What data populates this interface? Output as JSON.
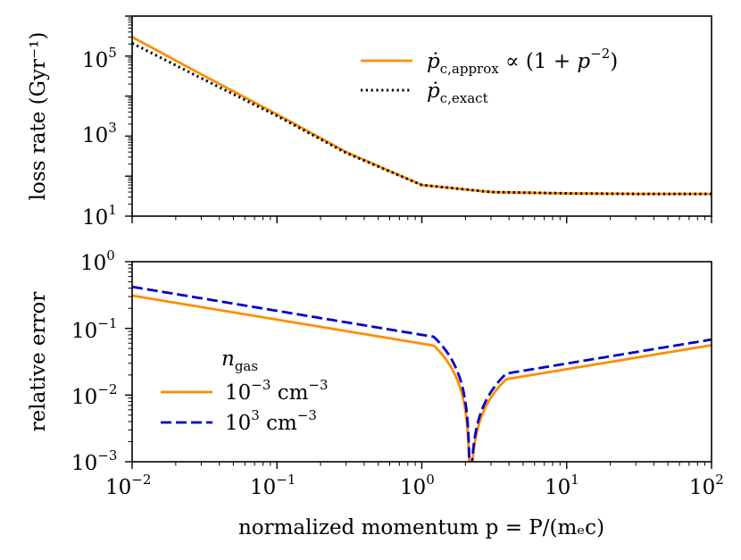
{
  "chart_data": [
    {
      "type": "line",
      "panel": "top",
      "xscale": "log",
      "yscale": "log",
      "xlim": [
        0.01,
        100
      ],
      "ylim": [
        10,
        1000000
      ],
      "ylabel": "loss rate (Gyr⁻¹)",
      "yticks": [
        {
          "value": 10,
          "base": "10",
          "exp": "1"
        },
        {
          "value": 1000,
          "base": "10",
          "exp": "3"
        },
        {
          "value": 100000,
          "base": "10",
          "exp": "5"
        }
      ],
      "legend_position": "top-right",
      "series": [
        {
          "name": "ṗc,approx ∝ (1 + p⁻²)",
          "color": "#ff8c00",
          "style": "solid",
          "x": [
            0.01,
            0.03,
            0.1,
            0.3,
            1,
            3,
            10,
            30,
            100
          ],
          "y": [
            300000,
            35000,
            3500,
            400,
            60,
            40,
            37,
            36,
            36
          ]
        },
        {
          "name": "ṗc,exact",
          "color": "#000000",
          "style": "dotted",
          "x": [
            0.01,
            0.03,
            0.1,
            0.3,
            1,
            3,
            10,
            30,
            100
          ],
          "y": [
            210000,
            28000,
            3200,
            380,
            60,
            40,
            37,
            36,
            36
          ]
        }
      ],
      "legend": [
        {
          "main": "ṗ",
          "sub": "c,approx",
          "rest": " ∝ (1 + ",
          "p": "p",
          "exp": "−2",
          "close": ")"
        },
        {
          "main": "ṗ",
          "sub": "c,exact"
        }
      ]
    },
    {
      "type": "line",
      "panel": "bottom",
      "xscale": "log",
      "yscale": "log",
      "xlim": [
        0.01,
        100
      ],
      "ylim": [
        0.001,
        1
      ],
      "xlabel": "normalized momentum p = P/(mₑc)",
      "ylabel": "relative error",
      "xticks": [
        {
          "value": 0.01,
          "base": "10",
          "exp": "−2"
        },
        {
          "value": 0.1,
          "base": "10",
          "exp": "−1"
        },
        {
          "value": 1,
          "base": "10",
          "exp": "0"
        },
        {
          "value": 10,
          "base": "10",
          "exp": "1"
        },
        {
          "value": 100,
          "base": "10",
          "exp": "2"
        }
      ],
      "yticks": [
        {
          "value": 0.001,
          "base": "10",
          "exp": "−3"
        },
        {
          "value": 0.01,
          "base": "10",
          "exp": "−2"
        },
        {
          "value": 0.1,
          "base": "10",
          "exp": "−1"
        },
        {
          "value": 1,
          "base": "10",
          "exp": "0"
        }
      ],
      "legend_position": "bottom-left",
      "legend_title": {
        "main": "n",
        "sub": "gas"
      },
      "series": [
        {
          "name": "10⁻³ cm⁻³",
          "color": "#ff8c00",
          "style": "solid",
          "root": 2.15,
          "amp_low": 0.31,
          "amp_high": 0.056
        },
        {
          "name": "10³ cm⁻³",
          "color": "#0000c8",
          "style": "dashed",
          "root": 2.15,
          "amp_low": 0.42,
          "amp_high": 0.068
        }
      ],
      "legend": [
        {
          "base": "10",
          "exp": "−3",
          "unit": " cm",
          "uexp": "−3"
        },
        {
          "base": "10",
          "exp": "3",
          "unit": " cm",
          "uexp": "−3"
        }
      ]
    }
  ]
}
